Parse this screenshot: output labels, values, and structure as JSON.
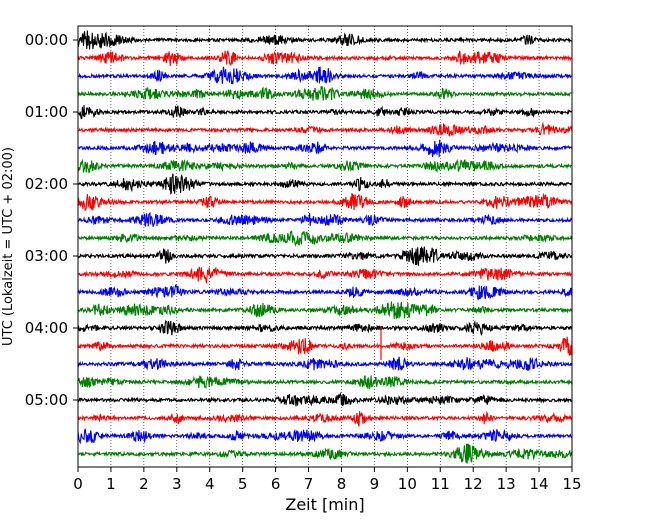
{
  "chart_data": {
    "type": "line",
    "title": "",
    "xlabel": "Zeit  [min]",
    "ylabel": "UTC (Lokalzeit = UTC + 02:00)",
    "xlim": [
      0,
      15
    ],
    "x_ticks": [
      "0",
      "1",
      "2",
      "3",
      "4",
      "5",
      "6",
      "7",
      "8",
      "9",
      "10",
      "11",
      "12",
      "13",
      "14",
      "15"
    ],
    "y_ticks": [
      "00:00",
      "01:00",
      "02:00",
      "03:00",
      "04:00",
      "05:00"
    ],
    "trace_offsets_minutes": [
      0,
      15,
      30,
      45,
      60,
      75,
      90,
      105,
      120,
      135,
      150,
      165,
      180,
      195,
      210,
      225,
      240,
      255,
      270,
      285,
      300,
      315,
      330,
      345
    ],
    "trace_colors": [
      "#000000",
      "#ff0000",
      "#0000ff",
      "#008000"
    ],
    "grid": "vertical dotted lines at each minute"
  }
}
